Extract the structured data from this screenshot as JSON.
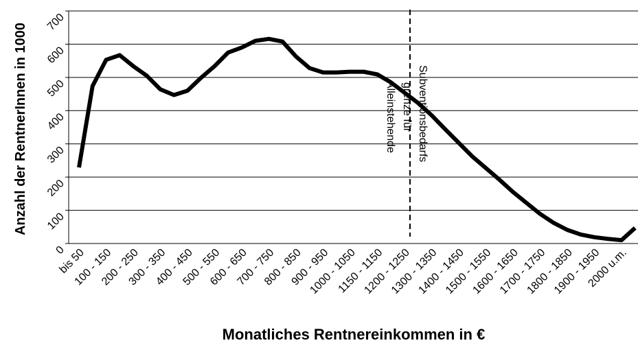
{
  "chart_data": {
    "type": "line",
    "x_label": "Monatliches Rentnereinkommen in €",
    "y_label": "Anzahl der RentnerInnen in 1000",
    "annotation": [
      "Subventionsbedarfs",
      "grenze für",
      "Alleinstehende"
    ],
    "categories": [
      "bis 50",
      null,
      "100 - 150",
      null,
      "200 - 250",
      null,
      "300 - 350",
      null,
      "400 - 450",
      null,
      "500 - 550",
      null,
      "600 - 650",
      null,
      "700 - 750",
      null,
      "800 - 850",
      null,
      "900 - 950",
      null,
      "1000 - 1050",
      null,
      "1150 - 1150",
      null,
      "1200 - 1250",
      null,
      "1300 - 1350",
      null,
      "1400 - 1450",
      null,
      "1500 - 1550",
      null,
      "1600 - 1650",
      null,
      "1700 - 1750",
      null,
      "1800 - 1850",
      null,
      "1900 - 1950",
      null,
      "2000 u.m.",
      null
    ],
    "series": [
      {
        "name": "RentnerInnen",
        "color": "#000000",
        "values": [
          229,
          474,
          553,
          567,
          534,
          505,
          464,
          447,
          460,
          499,
          534,
          575,
          590,
          610,
          616,
          608,
          563,
          528,
          515,
          515,
          517,
          517,
          509,
          485,
          454,
          423,
          386,
          344,
          303,
          262,
          227,
          192,
          155,
          122,
          89,
          62,
          41,
          27,
          19,
          14,
          10,
          47
        ]
      }
    ],
    "ylim": [
      0,
      700
    ],
    "yticks": [
      0,
      100,
      200,
      300,
      400,
      500,
      600,
      700
    ],
    "grid": true
  }
}
